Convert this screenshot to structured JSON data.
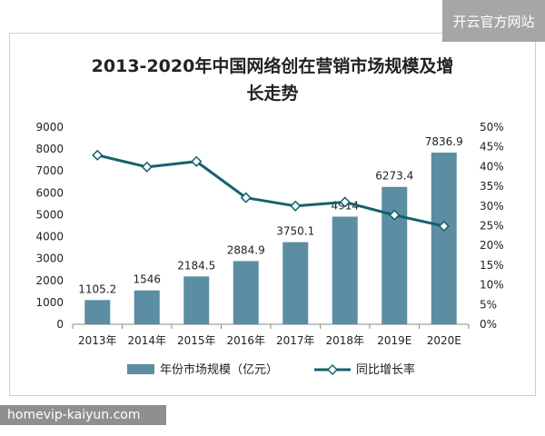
{
  "watermark_top": "开云官方网站",
  "watermark_bottom": "homevip-kaiyun.com",
  "chart_data": {
    "type": "bar+line",
    "title": "2013-2020年中国网络创在营销市场规模及增长走势",
    "title_lines": [
      "2013-2020年中国网络创在营销市场规模及增",
      "长走势"
    ],
    "categories": [
      "2013年",
      "2014年",
      "2015年",
      "2016年",
      "2017年",
      "2018年",
      "2019E",
      "2020E"
    ],
    "y_left": {
      "ylim": [
        0,
        9000
      ],
      "ticks": [
        "0",
        "1000",
        "2000",
        "3000",
        "4000",
        "5000",
        "6000",
        "7000",
        "8000",
        "9000"
      ]
    },
    "y_right": {
      "ylim": [
        0,
        50
      ],
      "ticks": [
        "0%",
        "5%",
        "10%",
        "15%",
        "20%",
        "25%",
        "30%",
        "35%",
        "40%",
        "45%",
        "50%"
      ]
    },
    "series": [
      {
        "name": "年份市场规模（亿元）",
        "kind": "bar",
        "axis": "left",
        "color": "#5b8da3",
        "values": [
          1105.2,
          1546,
          2184.5,
          2884.9,
          3750.1,
          4914,
          6273.4,
          7836.9
        ],
        "labels": [
          "1105.2",
          "1546",
          "2184.5",
          "2884.9",
          "3750.1",
          "4914",
          "6273.4",
          "7836.9"
        ]
      },
      {
        "name": "同比增长率",
        "kind": "line",
        "axis": "right",
        "color": "#17606e",
        "values": [
          42.9,
          39.9,
          41.3,
          32.1,
          30.0,
          31.0,
          27.7,
          24.9
        ]
      }
    ],
    "grid": false,
    "legend": "bottom"
  }
}
